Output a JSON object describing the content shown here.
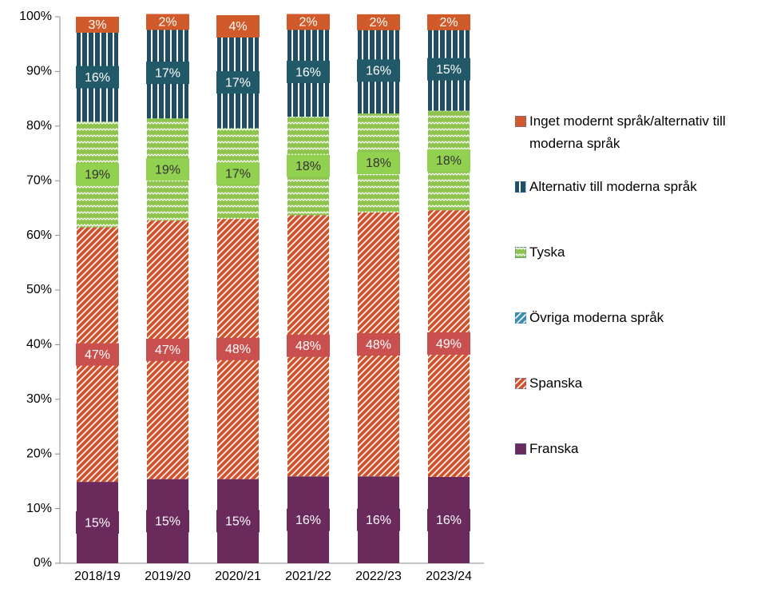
{
  "chart_data": {
    "type": "stacked_bar",
    "categories": [
      "2018/19",
      "2019/20",
      "2020/21",
      "2021/22",
      "2022/23",
      "2023/24"
    ],
    "series": [
      {
        "name": "Franska",
        "color": "#6b2a5c",
        "label_color": "#6b2a5c",
        "pattern": "solid",
        "values": [
          14.9,
          15.4,
          15.4,
          15.9,
          15.9,
          15.8
        ],
        "value_labels": [
          "15%",
          "15%",
          "15%",
          "16%",
          "16%",
          "16%"
        ]
      },
      {
        "name": "Spanska",
        "color": "#d2542f",
        "label_color": "#c9504f",
        "pattern": "diagonal",
        "values": [
          46.6,
          47.3,
          47.6,
          47.8,
          48.3,
          48.8
        ],
        "value_labels": [
          "47%",
          "47%",
          "48%",
          "48%",
          "48%",
          "49%"
        ]
      },
      {
        "name": "Övriga moderna språk",
        "color": "#3b8fb0",
        "pattern": "diagonal",
        "values": [
          0,
          0,
          0,
          0,
          0,
          0
        ]
      },
      {
        "name": "Tyska",
        "color": "#8dc44d",
        "label_color": "#92d050",
        "pattern": "wave",
        "values": [
          19.3,
          18.7,
          16.6,
          18.0,
          18.1,
          18.2
        ],
        "value_labels": [
          "19%",
          "19%",
          "17%",
          "18%",
          "18%",
          "18%"
        ]
      },
      {
        "name": "Alternativ till moderna språk",
        "color": "#1d4e63",
        "label_color": "#215968",
        "pattern": "vertical",
        "values": [
          16.3,
          16.7,
          16.8,
          16.4,
          15.7,
          15.2
        ],
        "value_labels": [
          "16%",
          "17%",
          "17%",
          "16%",
          "16%",
          "15%"
        ]
      },
      {
        "name": "Inget modernt språk/alternativ till moderna språk",
        "color": "#d05a2a",
        "label_color": "#d05a2a",
        "pattern": "solid",
        "values": [
          2.9,
          1.9,
          3.7,
          1.9,
          2.0,
          2.0
        ],
        "value_labels": [
          "3%",
          "2%",
          "4%",
          "2%",
          "2%",
          "2%"
        ]
      }
    ],
    "ylim": [
      0,
      100
    ],
    "yticks": [
      {
        "value": 0,
        "label": "0%"
      },
      {
        "value": 10,
        "label": "10%"
      },
      {
        "value": 20,
        "label": "20%"
      },
      {
        "value": 30,
        "label": "30%"
      },
      {
        "value": 40,
        "label": "40%"
      },
      {
        "value": 50,
        "label": "50%"
      },
      {
        "value": 60,
        "label": "60%"
      },
      {
        "value": 70,
        "label": "70%"
      },
      {
        "value": 80,
        "label": "80%"
      },
      {
        "value": 90,
        "label": "90%"
      },
      {
        "value": 100,
        "label": "100%"
      }
    ],
    "grid": false,
    "legend": "right"
  }
}
